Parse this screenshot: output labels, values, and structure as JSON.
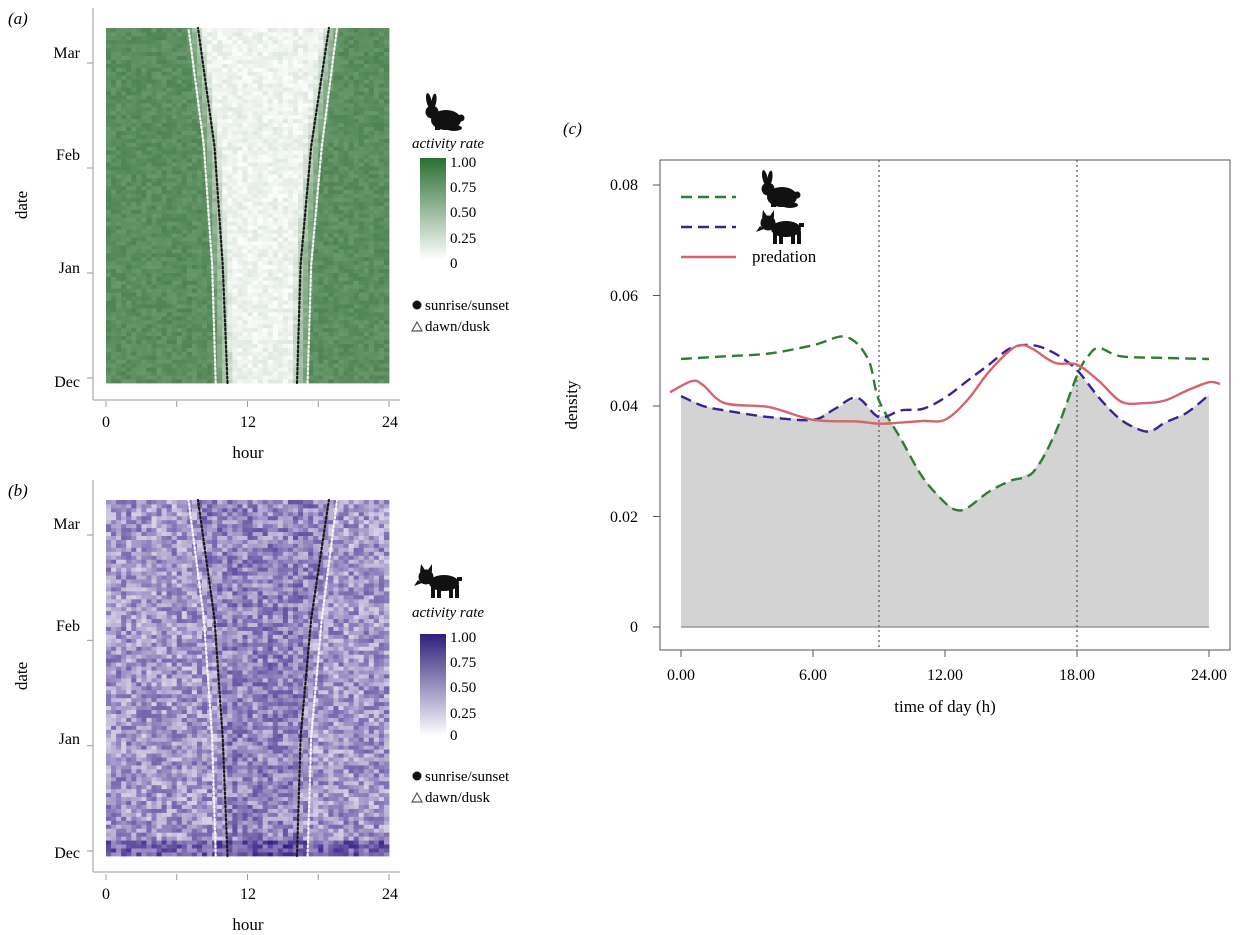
{
  "panel_labels": {
    "a": "(a)",
    "b": "(b)",
    "c": "(c)"
  },
  "colors": {
    "rabbit": "#2e7d32",
    "rabbit_legend_high": "#2d6e33",
    "lynx": "#3a2590",
    "lynx_legend_high": "#2f1f7a",
    "predation": "#d4646e",
    "fill": "#d3d3d3"
  },
  "icons": {
    "rabbit": "rabbit-icon",
    "lynx": "lynx-icon"
  },
  "chart_data": [
    {
      "id": "a",
      "type": "heatmap",
      "xlabel": "hour",
      "ylabel": "date",
      "x_ticks": [
        "0",
        "12",
        "24"
      ],
      "x_range": [
        0,
        24
      ],
      "y_ticks": [
        "Dec",
        "Jan",
        "Feb",
        "Mar"
      ],
      "legend_title": "activity rate",
      "legend_ticks": [
        "1.00",
        "0.75",
        "0.50",
        "0.25",
        "0"
      ],
      "legend_range": [
        0,
        1
      ],
      "markers": [
        "sunrise/sunset",
        "dawn/dusk"
      ],
      "sunrise_hours": [
        10.3,
        9.9,
        9.2,
        7.8
      ],
      "sunset_hours": [
        16.2,
        16.5,
        17.4,
        18.9
      ],
      "dawn_hours": [
        9.3,
        9.0,
        8.3,
        7.0
      ],
      "dusk_hours": [
        17.1,
        17.4,
        18.3,
        19.6
      ]
    },
    {
      "id": "b",
      "type": "heatmap",
      "xlabel": "hour",
      "ylabel": "date",
      "x_ticks": [
        "0",
        "12",
        "24"
      ],
      "x_range": [
        0,
        24
      ],
      "y_ticks": [
        "Dec",
        "Jan",
        "Feb",
        "Mar"
      ],
      "legend_title": "activity rate",
      "legend_ticks": [
        "1.00",
        "0.75",
        "0.50",
        "0.25",
        "0"
      ],
      "legend_range": [
        0,
        1
      ],
      "markers": [
        "sunrise/sunset",
        "dawn/dusk"
      ],
      "sunrise_hours": [
        10.3,
        9.9,
        9.2,
        7.8
      ],
      "sunset_hours": [
        16.2,
        16.5,
        17.4,
        18.9
      ],
      "dawn_hours": [
        9.3,
        9.0,
        8.3,
        7.0
      ],
      "dusk_hours": [
        17.1,
        17.4,
        18.3,
        19.6
      ]
    },
    {
      "id": "c",
      "type": "line",
      "xlabel": "time of day (h)",
      "ylabel": "density",
      "xlim": [
        0,
        24
      ],
      "ylim": [
        0,
        0.08
      ],
      "x_ticks": [
        "0.00",
        "6.00",
        "12.00",
        "18.00",
        "24.00"
      ],
      "x_tick_values": [
        0,
        6,
        12,
        18,
        24
      ],
      "y_ticks": [
        "0",
        "0.02",
        "0.04",
        "0.06",
        "0.08"
      ],
      "y_tick_values": [
        0,
        0.02,
        0.04,
        0.06,
        0.08
      ],
      "vlines": [
        9,
        18
      ],
      "series": [
        {
          "key": "rabbit",
          "style": "dashed",
          "x": [
            0,
            2,
            4,
            6,
            7.5,
            8.5,
            9,
            10,
            11,
            12,
            12.5,
            13,
            14,
            15,
            16,
            17,
            18,
            18.5,
            19,
            20,
            22,
            24
          ],
          "y": [
            0.0485,
            0.049,
            0.0495,
            0.051,
            0.0525,
            0.0485,
            0.041,
            0.034,
            0.027,
            0.0225,
            0.0212,
            0.0215,
            0.0245,
            0.0265,
            0.028,
            0.035,
            0.0455,
            0.049,
            0.0505,
            0.049,
            0.0487,
            0.0485
          ]
        },
        {
          "key": "lynx",
          "style": "dashed",
          "x": [
            0,
            1,
            2,
            4,
            6,
            7,
            8,
            9,
            10,
            11,
            12,
            13,
            14,
            15,
            16,
            17,
            18,
            19,
            20,
            21,
            21.5,
            22,
            23,
            24
          ],
          "y": [
            0.0418,
            0.04,
            0.0392,
            0.038,
            0.0375,
            0.0395,
            0.0415,
            0.038,
            0.0392,
            0.0395,
            0.0415,
            0.0445,
            0.0475,
            0.0505,
            0.051,
            0.0495,
            0.0465,
            0.0415,
            0.0375,
            0.0355,
            0.0357,
            0.037,
            0.0388,
            0.042
          ]
        },
        {
          "key": "predation",
          "name": "predation",
          "style": "solid",
          "x": [
            -0.5,
            0.5,
            1,
            2,
            4,
            6,
            8,
            9,
            10,
            11,
            12,
            13,
            14,
            15,
            15.5,
            16,
            17,
            18,
            19,
            20,
            21,
            22,
            23,
            24,
            24.5
          ],
          "y": [
            0.0425,
            0.0445,
            0.0438,
            0.0405,
            0.0398,
            0.0375,
            0.0372,
            0.0368,
            0.037,
            0.0373,
            0.0375,
            0.041,
            0.0462,
            0.0502,
            0.051,
            0.0503,
            0.0478,
            0.0475,
            0.0445,
            0.0408,
            0.0405,
            0.041,
            0.0428,
            0.0443,
            0.044
          ]
        }
      ]
    }
  ]
}
